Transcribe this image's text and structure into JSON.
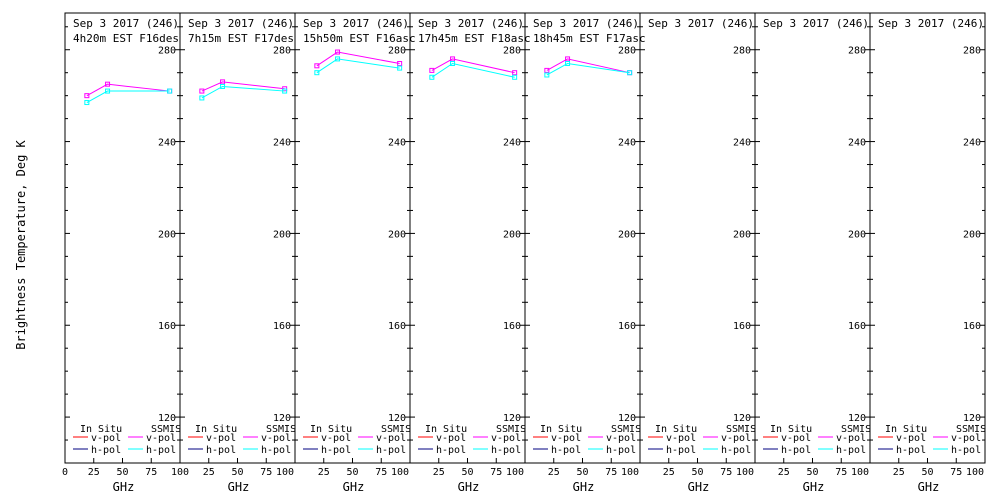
{
  "chart_data": {
    "type": "line",
    "ylabel": "Brightness Temperature, Deg K",
    "xlabel": "GHz",
    "xlim": [
      0,
      100
    ],
    "ylim": [
      100,
      296
    ],
    "x_ticks": [
      "0",
      "25",
      "50",
      "75",
      "100"
    ],
    "x_ticks_short": [
      "25",
      "50",
      "75",
      "100"
    ],
    "y_ticks": [
      "120",
      "160",
      "200",
      "240",
      "280"
    ],
    "y_tick_values": [
      120,
      160,
      200,
      240,
      280
    ],
    "legend": {
      "group_left": "In Situ",
      "group_right": "SSMIS",
      "vpol": "v-pol",
      "hpol": "h-pol"
    },
    "colors": {
      "insitu_vpol": "#ff0000",
      "insitu_hpol": "#000080",
      "ssmis_vpol": "#ff00ff",
      "ssmis_hpol": "#00ffff",
      "frame": "#000000"
    },
    "panels": [
      {
        "title1": "Sep 3 2017 (246)",
        "title2": "4h20m EST F16des",
        "series": [
          {
            "name": "v-pol",
            "group": "SSMIS",
            "x": [
              19,
              37,
              91
            ],
            "y": [
              260,
              265,
              262
            ]
          },
          {
            "name": "h-pol",
            "group": "SSMIS",
            "x": [
              19,
              37,
              91
            ],
            "y": [
              257,
              262,
              262
            ]
          }
        ]
      },
      {
        "title1": "Sep 3 2017 (246)",
        "title2": "7h15m EST F17des",
        "series": [
          {
            "name": "v-pol",
            "group": "SSMIS",
            "x": [
              19,
              37,
              91
            ],
            "y": [
              262,
              266,
              263
            ]
          },
          {
            "name": "h-pol",
            "group": "SSMIS",
            "x": [
              19,
              37,
              91
            ],
            "y": [
              259,
              264,
              262
            ]
          }
        ]
      },
      {
        "title1": "Sep 3 2017 (246)",
        "title2": "15h50m EST F16asc",
        "series": [
          {
            "name": "v-pol",
            "group": "SSMIS",
            "x": [
              19,
              37,
              91
            ],
            "y": [
              273,
              279,
              274
            ]
          },
          {
            "name": "h-pol",
            "group": "SSMIS",
            "x": [
              19,
              37,
              91
            ],
            "y": [
              270,
              276,
              272
            ]
          }
        ]
      },
      {
        "title1": "Sep 3 2017 (246)",
        "title2": "17h45m EST F18asc",
        "series": [
          {
            "name": "v-pol",
            "group": "SSMIS",
            "x": [
              19,
              37,
              91
            ],
            "y": [
              271,
              276,
              270
            ]
          },
          {
            "name": "h-pol",
            "group": "SSMIS",
            "x": [
              19,
              37,
              91
            ],
            "y": [
              268,
              274,
              268
            ]
          }
        ]
      },
      {
        "title1": "Sep 3 2017 (246)",
        "title2": "18h45m EST F17asc",
        "series": [
          {
            "name": "v-pol",
            "group": "SSMIS",
            "x": [
              19,
              37,
              91
            ],
            "y": [
              271,
              276,
              270
            ]
          },
          {
            "name": "h-pol",
            "group": "SSMIS",
            "x": [
              19,
              37,
              91
            ],
            "y": [
              269,
              274,
              270
            ]
          }
        ]
      },
      {
        "title1": "Sep 3 2017 (246)",
        "title2": "",
        "series": []
      },
      {
        "title1": "Sep 3 2017 (246)",
        "title2": "",
        "series": []
      },
      {
        "title1": "Sep 3 2017 (246)",
        "title2": "",
        "series": []
      }
    ]
  }
}
